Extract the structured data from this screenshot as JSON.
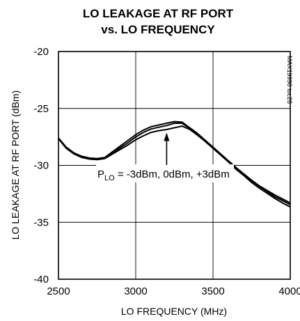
{
  "chart_data": {
    "type": "line",
    "title_lines": [
      "LO LEAKAGE AT RF PORT",
      "vs. LO FREQUENCY"
    ],
    "xlabel": "LO FREQUENCY (MHz)",
    "ylabel": "LO LEAKAGE AT RF PORT (dBm)",
    "xlim": [
      2500,
      4000
    ],
    "ylim": [
      -40,
      -20
    ],
    "x_ticks": [
      2500,
      3000,
      3500,
      4000
    ],
    "y_ticks": [
      -20,
      -25,
      -30,
      -35,
      -40
    ],
    "x_tick_labels": [
      "2500",
      "3000",
      "3500",
      "4000"
    ],
    "y_tick_labels": [
      "-20",
      "-25",
      "-30",
      "-35",
      "-40"
    ],
    "grid": true,
    "series": [
      {
        "x": [
          2500,
          2550,
          2600,
          2650,
          2700,
          2750,
          2800,
          2850,
          2900,
          2950,
          3000,
          3050,
          3100,
          3150,
          3200,
          3250,
          3300,
          3350,
          3400,
          3450,
          3500,
          3550,
          3600,
          3650,
          3700,
          3750,
          3800,
          3850,
          3900,
          3950,
          4000
        ],
        "y": [
          -27.6,
          -28.4,
          -28.9,
          -29.2,
          -29.35,
          -29.4,
          -29.3,
          -28.8,
          -28.3,
          -27.8,
          -27.3,
          -26.9,
          -26.6,
          -26.45,
          -26.3,
          -26.15,
          -26.2,
          -26.7,
          -27.2,
          -27.8,
          -28.4,
          -29.0,
          -29.6,
          -30.2,
          -30.75,
          -31.3,
          -31.8,
          -32.2,
          -32.6,
          -32.95,
          -33.3
        ]
      },
      {
        "x": [
          2500,
          2550,
          2600,
          2650,
          2700,
          2750,
          2800,
          2850,
          2900,
          2950,
          3000,
          3050,
          3100,
          3150,
          3200,
          3250,
          3300,
          3350,
          3400,
          3450,
          3500,
          3550,
          3600,
          3650,
          3700,
          3750,
          3800,
          3850,
          3900,
          3950,
          4000
        ],
        "y": [
          -27.6,
          -28.45,
          -28.95,
          -29.25,
          -29.4,
          -29.45,
          -29.35,
          -28.9,
          -28.45,
          -28.0,
          -27.5,
          -27.1,
          -26.8,
          -26.65,
          -26.5,
          -26.3,
          -26.3,
          -26.75,
          -27.25,
          -27.85,
          -28.45,
          -29.05,
          -29.65,
          -30.25,
          -30.8,
          -31.35,
          -31.85,
          -32.3,
          -32.75,
          -33.1,
          -33.45
        ]
      },
      {
        "x": [
          2500,
          2550,
          2600,
          2650,
          2700,
          2750,
          2800,
          2850,
          2900,
          2950,
          3000,
          3050,
          3100,
          3150,
          3200,
          3250,
          3300,
          3350,
          3400,
          3450,
          3500,
          3550,
          3600,
          3650,
          3700,
          3750,
          3800,
          3850,
          3900,
          3950,
          4000
        ],
        "y": [
          -27.65,
          -28.5,
          -29.0,
          -29.3,
          -29.45,
          -29.5,
          -29.4,
          -29.0,
          -28.6,
          -28.2,
          -27.75,
          -27.4,
          -27.1,
          -26.95,
          -26.85,
          -26.7,
          -26.55,
          -26.85,
          -27.35,
          -27.9,
          -28.5,
          -29.1,
          -29.7,
          -30.35,
          -30.9,
          -31.5,
          -32.0,
          -32.45,
          -32.9,
          -33.3,
          -33.65
        ]
      }
    ],
    "annotation": {
      "prefix": "P",
      "subscript": "LO",
      "suffix": " = -3dBm, 0dBm, +3dBm",
      "arrow_target": {
        "x": 3200,
        "y": -27.0
      }
    },
    "figure_code": "MAX19998 toc26"
  }
}
